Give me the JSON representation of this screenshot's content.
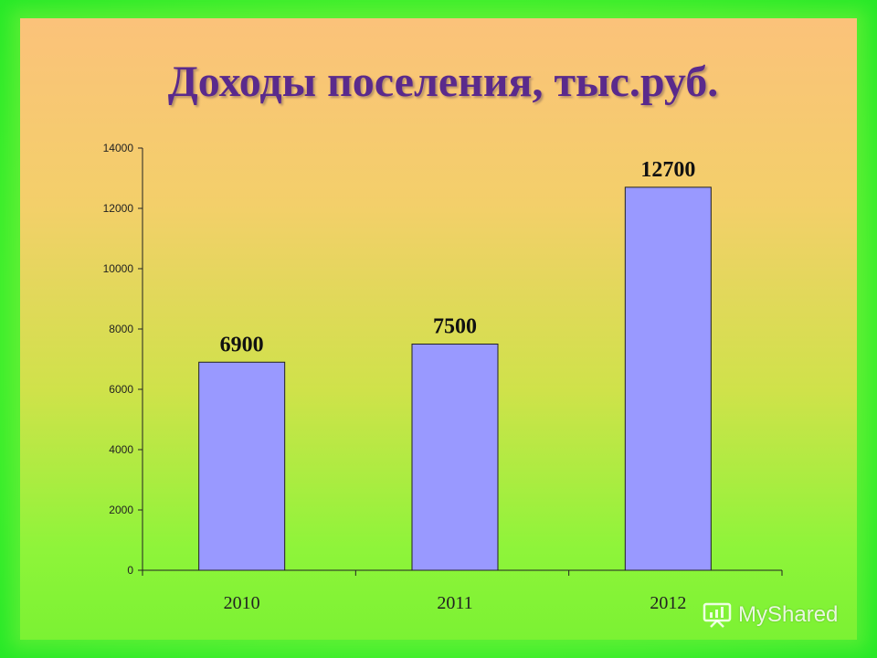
{
  "title": "Доходы поселения, тыс.руб.",
  "watermark": "MyShared",
  "colors": {
    "bar": "#9999ff",
    "title": "#5a2a8c"
  },
  "chart_data": {
    "type": "bar",
    "title": "Доходы поселения, тыс.руб.",
    "categories": [
      "2010",
      "2011",
      "2012"
    ],
    "values": [
      6900,
      7500,
      12700
    ],
    "data_labels": [
      "6900",
      "7500",
      "12700"
    ],
    "ylim": [
      0,
      14000
    ],
    "yticks": [
      0,
      2000,
      4000,
      6000,
      8000,
      10000,
      12000,
      14000
    ],
    "ytick_labels": [
      "0",
      "2000",
      "4000",
      "6000",
      "8000",
      "10000",
      "12000",
      "14000"
    ],
    "grid": false,
    "legend": "none"
  }
}
